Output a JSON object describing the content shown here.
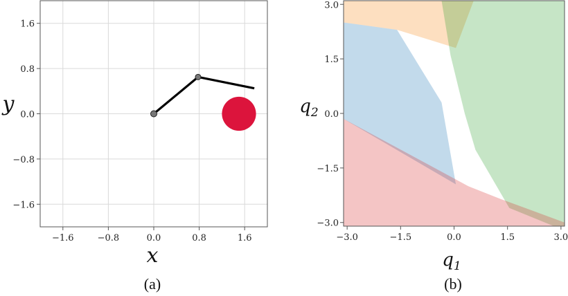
{
  "panel_a": {
    "caption": "(a)",
    "xlabel": "x",
    "ylabel": "y"
  },
  "panel_b": {
    "caption": "(b)",
    "xlabel_base": "q",
    "xlabel_sub": "1",
    "ylabel_base": "q",
    "ylabel_sub": "2"
  },
  "chart_data": [
    {
      "type": "line",
      "xlim": [
        -2.0,
        2.0
      ],
      "ylim": [
        -2.0,
        2.0
      ],
      "grid": true,
      "xticks": [
        -1.6,
        -0.8,
        0.0,
        0.8,
        1.6
      ],
      "xtick_labels": [
        "−1.6",
        "−0.8",
        "0.0",
        "0.8",
        "1.6"
      ],
      "yticks": [
        1.6,
        0.8,
        0.0,
        -0.8,
        -1.6
      ],
      "ytick_labels": [
        "1.6",
        "0.8",
        "0.0",
        "−0.8",
        "−1.6"
      ],
      "arm": {
        "color": "#000000",
        "joint_color": "#777777",
        "points": [
          [
            0.0,
            0.0
          ],
          [
            0.78,
            0.65
          ],
          [
            1.77,
            0.45
          ]
        ]
      },
      "obstacle": {
        "center": [
          1.5,
          0.0
        ],
        "radius": 0.3,
        "color": "#dc143c"
      }
    },
    {
      "type": "area",
      "xlim": [
        -3.1,
        3.1
      ],
      "ylim": [
        -3.1,
        3.1
      ],
      "grid": false,
      "xticks": [
        -3.0,
        -1.5,
        0.0,
        1.5,
        3.0
      ],
      "xtick_labels": [
        "−3.0",
        "−1.5",
        "0.0",
        "1.5",
        "3.0"
      ],
      "yticks": [
        3.0,
        1.5,
        0.0,
        -1.5,
        -3.0
      ],
      "ytick_labels": [
        "3.0",
        "1.5",
        "0.0",
        "−1.5",
        "−3.0"
      ],
      "regions": [
        {
          "color": "#fdd9b5",
          "opacity": 0.85,
          "points": [
            [
              -3.1,
              3.1
            ],
            [
              0.55,
              3.1
            ],
            [
              0.05,
              1.8
            ],
            [
              -1.6,
              2.3
            ],
            [
              -3.1,
              2.5
            ]
          ]
        },
        {
          "color": "#2ca02c",
          "opacity": 0.27,
          "points": [
            [
              -0.35,
              3.1
            ],
            [
              3.1,
              3.1
            ],
            [
              3.1,
              -3.1
            ],
            [
              2.8,
              -3.1
            ],
            [
              1.55,
              -2.6
            ],
            [
              0.6,
              -1.0
            ],
            [
              0.3,
              0.0
            ],
            [
              -0.1,
              1.6
            ]
          ]
        },
        {
          "color": "#1f77b4",
          "opacity": 0.27,
          "points": [
            [
              -3.1,
              2.5
            ],
            [
              -1.6,
              2.3
            ],
            [
              -0.85,
              1.1
            ],
            [
              -0.35,
              0.3
            ],
            [
              0.05,
              -1.95
            ],
            [
              -3.1,
              -0.15
            ]
          ]
        },
        {
          "color": "#d62728",
          "opacity": 0.27,
          "points": [
            [
              -3.1,
              -0.15
            ],
            [
              0.4,
              -2.0
            ],
            [
              1.3,
              -2.35
            ],
            [
              3.1,
              -3.0
            ],
            [
              3.1,
              -3.1
            ],
            [
              -3.1,
              -3.1
            ]
          ]
        }
      ]
    }
  ]
}
